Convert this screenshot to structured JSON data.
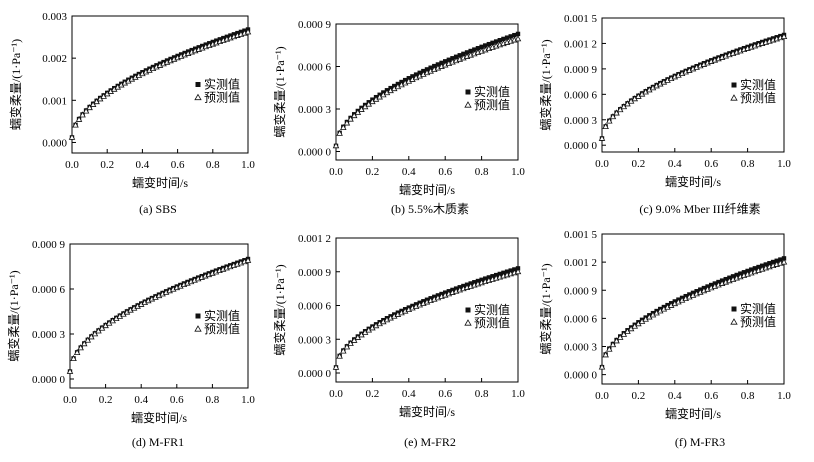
{
  "chart_data": [
    {
      "type": "scatter",
      "caption": "(a) SBS",
      "xlabel": "蠕变时间/s",
      "ylabel": "蠕变柔量/(1·Pa⁻¹)",
      "xlim": [
        0,
        1.0
      ],
      "ylim": [
        -0.00025,
        0.003
      ],
      "xticks": [
        "0.0",
        "0.2",
        "0.4",
        "0.6",
        "0.8",
        "1.0"
      ],
      "yticks": [
        {
          "value": 0,
          "label": "0.000"
        },
        {
          "value": 0.001,
          "label": "0.001"
        },
        {
          "value": 0.002,
          "label": "0.002"
        },
        {
          "value": 0.003,
          "label": "0.003"
        }
      ],
      "legend_position": "right-middle",
      "series": [
        {
          "name": "实测值",
          "marker": "square",
          "y0": 0.00012,
          "y1": 0.00268
        },
        {
          "name": "预测值",
          "marker": "triangle",
          "y0": 0.00012,
          "y1": 0.00262
        }
      ]
    },
    {
      "type": "scatter",
      "caption": "(b) 5.5%木质素",
      "xlabel": "蠕变时间/s",
      "ylabel": "蠕变柔量/(1·Pa⁻¹)",
      "xlim": [
        0,
        1.0
      ],
      "ylim": [
        -6e-05,
        0.0009
      ],
      "xticks": [
        "0.0",
        "0.2",
        "0.4",
        "0.6",
        "0.8",
        "1.0"
      ],
      "yticks": [
        {
          "value": 0,
          "label": "0.000 0"
        },
        {
          "value": 0.0003,
          "label": "0.000 3"
        },
        {
          "value": 0.0006,
          "label": "0.000 6"
        },
        {
          "value": 0.0009,
          "label": "0.000 9"
        }
      ],
      "legend_position": "right-middle",
      "series": [
        {
          "name": "实测值",
          "marker": "square",
          "y0": 4e-05,
          "y1": 0.00083
        },
        {
          "name": "预测值",
          "marker": "triangle",
          "y0": 4e-05,
          "y1": 0.000795
        }
      ]
    },
    {
      "type": "scatter",
      "caption": "(c) 9.0% Mber III纤维素",
      "xlabel": "蠕变时间/s",
      "ylabel": "蠕变柔量/(1·Pa⁻¹)",
      "xlim": [
        0,
        1.0
      ],
      "ylim": [
        -8e-05,
        0.0015
      ],
      "xticks": [
        "0.0",
        "0.2",
        "0.4",
        "0.6",
        "0.8",
        "1.0"
      ],
      "yticks": [
        {
          "value": 0,
          "label": "0.000 0"
        },
        {
          "value": 0.0003,
          "label": "0.000 3"
        },
        {
          "value": 0.0006,
          "label": "0.000 6"
        },
        {
          "value": 0.0009,
          "label": "0.000 9"
        },
        {
          "value": 0.0012,
          "label": "0.001 2"
        },
        {
          "value": 0.0015,
          "label": "0.001 5"
        }
      ],
      "legend_position": "right-middle",
      "series": [
        {
          "name": "实测值",
          "marker": "square",
          "y0": 8e-05,
          "y1": 0.0013
        },
        {
          "name": "预测值",
          "marker": "triangle",
          "y0": 8e-05,
          "y1": 0.00128
        }
      ]
    },
    {
      "type": "scatter",
      "caption": "(d) M-FR1",
      "xlabel": "蠕变时间/s",
      "ylabel": "蠕变柔量/(1·Pa⁻¹)",
      "xlim": [
        0,
        1.0
      ],
      "ylim": [
        -6e-05,
        0.0009
      ],
      "xticks": [
        "0.0",
        "0.2",
        "0.4",
        "0.6",
        "0.8",
        "1.0"
      ],
      "yticks": [
        {
          "value": 0,
          "label": "0.000 0"
        },
        {
          "value": 0.0003,
          "label": "0.000 3"
        },
        {
          "value": 0.0006,
          "label": "0.000 6"
        },
        {
          "value": 0.0009,
          "label": "0.000 9"
        }
      ],
      "legend_position": "right-middle",
      "series": [
        {
          "name": "实测值",
          "marker": "square",
          "y0": 5e-05,
          "y1": 0.0008
        },
        {
          "name": "预测值",
          "marker": "triangle",
          "y0": 5e-05,
          "y1": 0.00079
        }
      ]
    },
    {
      "type": "scatter",
      "caption": "(e) M-FR2",
      "xlabel": "蠕变时间/s",
      "ylabel": "蠕变柔量/(1·Pa⁻¹)",
      "xlim": [
        0,
        1.0
      ],
      "ylim": [
        -8e-05,
        0.0012
      ],
      "xticks": [
        "0.0",
        "0.2",
        "0.4",
        "0.6",
        "0.8",
        "1.0"
      ],
      "yticks": [
        {
          "value": 0,
          "label": "0.000 0"
        },
        {
          "value": 0.0003,
          "label": "0.000 3"
        },
        {
          "value": 0.0006,
          "label": "0.000 6"
        },
        {
          "value": 0.0009,
          "label": "0.000 9"
        },
        {
          "value": 0.0012,
          "label": "0.001 2"
        }
      ],
      "legend_position": "right-middle",
      "series": [
        {
          "name": "实测值",
          "marker": "square",
          "y0": 5e-05,
          "y1": 0.00093
        },
        {
          "name": "预测值",
          "marker": "triangle",
          "y0": 5e-05,
          "y1": 0.0009
        }
      ]
    },
    {
      "type": "scatter",
      "caption": "(f) M-FR3",
      "xlabel": "蠕变时间/s",
      "ylabel": "蠕变柔量/(1·Pa⁻¹)",
      "xlim": [
        0,
        1.0
      ],
      "ylim": [
        -0.0001,
        0.0015
      ],
      "xticks": [
        "0.0",
        "0.2",
        "0.4",
        "0.6",
        "0.8",
        "1.0"
      ],
      "yticks": [
        {
          "value": 0,
          "label": "0.000 0"
        },
        {
          "value": 0.0003,
          "label": "0.000 3"
        },
        {
          "value": 0.0006,
          "label": "0.000 6"
        },
        {
          "value": 0.0009,
          "label": "0.000 9"
        },
        {
          "value": 0.0012,
          "label": "0.001 2"
        },
        {
          "value": 0.0015,
          "label": "0.001 5"
        }
      ],
      "legend_position": "right-middle",
      "series": [
        {
          "name": "实测值",
          "marker": "square",
          "y0": 8e-05,
          "y1": 0.00124
        },
        {
          "name": "预测值",
          "marker": "triangle",
          "y0": 8e-05,
          "y1": 0.0012
        }
      ]
    }
  ]
}
